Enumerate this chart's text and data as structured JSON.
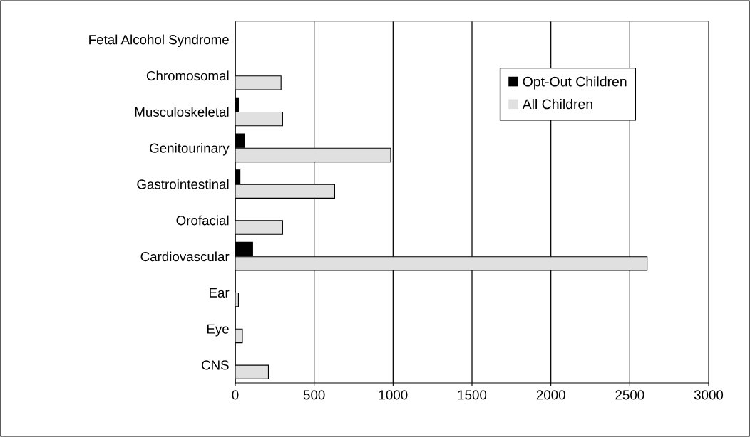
{
  "chart_data": {
    "type": "bar",
    "orientation": "horizontal",
    "categories": [
      "Fetal Alcohol Syndrome",
      "Chromosomal",
      "Musculoskeletal",
      "Genitourinary",
      "Gastrointestinal",
      "Orofacial",
      "Cardiovascular",
      "Ear",
      "Eye",
      "CNS"
    ],
    "series": [
      {
        "name": "Opt-Out Children",
        "color": "#000000",
        "values": [
          0,
          0,
          20,
          60,
          30,
          0,
          110,
          0,
          0,
          0
        ]
      },
      {
        "name": "All Children",
        "color": "#e0e0e0",
        "values": [
          0,
          290,
          300,
          985,
          630,
          300,
          2610,
          20,
          45,
          210
        ]
      }
    ],
    "xlim": [
      0,
      3000
    ],
    "xticks": [
      0,
      500,
      1000,
      1500,
      2000,
      2500,
      3000
    ],
    "grid": "x",
    "legend": "top right"
  }
}
